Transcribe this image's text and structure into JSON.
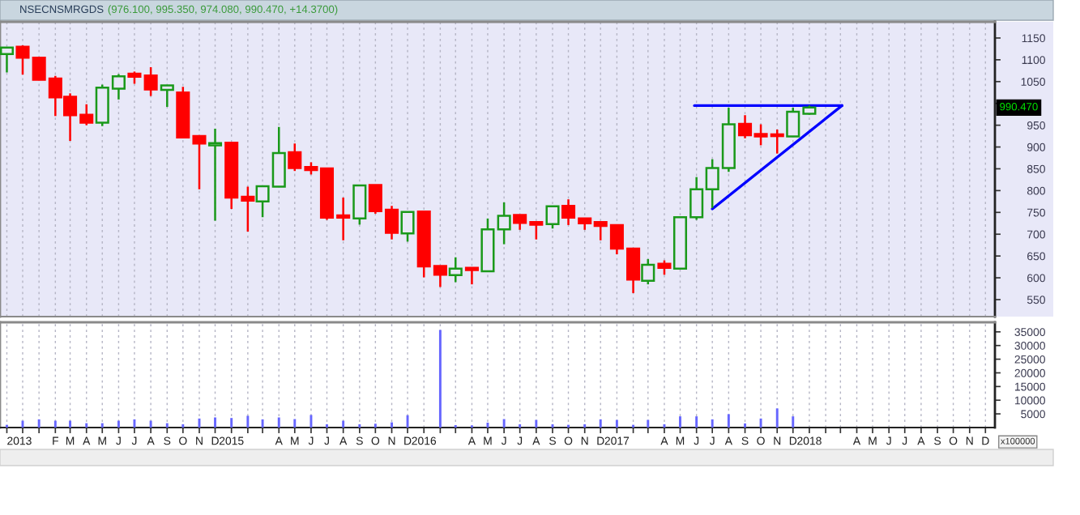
{
  "chart_data": [
    {
      "type": "candlestick",
      "title": "NSECNSMRGDS",
      "subtitle": "(976.100, 995.350, 974.080, 990.470, +14.3700)",
      "x": [
        "2013-11",
        "2013-12",
        "2014-01",
        "2014-02",
        "2014-03",
        "2014-04",
        "2014-05",
        "2014-06",
        "2014-07",
        "2014-08",
        "2014-09",
        "2014-10",
        "2014-11",
        "2014-12",
        "2015-01",
        "2015-02",
        "2015-03",
        "2015-04",
        "2015-05",
        "2015-06",
        "2015-07",
        "2015-08",
        "2015-09",
        "2015-10",
        "2015-11",
        "2015-12",
        "2016-01",
        "2016-02",
        "2016-03",
        "2016-04",
        "2016-05",
        "2016-06",
        "2016-07",
        "2016-08",
        "2016-09",
        "2016-10",
        "2016-11",
        "2016-12",
        "2017-01",
        "2017-02",
        "2017-03",
        "2017-04",
        "2017-05",
        "2017-06",
        "2017-07",
        "2017-08",
        "2017-09",
        "2017-10",
        "2017-11",
        "2017-12",
        "2018-01"
      ],
      "ohlc": [
        [
          1113,
          1129,
          1071,
          1128
        ],
        [
          1130,
          1133,
          1066,
          1105
        ],
        [
          1105,
          1106,
          1053,
          1054
        ],
        [
          1057,
          1063,
          971,
          1014
        ],
        [
          1015,
          1023,
          914,
          973
        ],
        [
          974,
          998,
          950,
          956
        ],
        [
          956,
          1043,
          948,
          1036
        ],
        [
          1034,
          1067,
          1009,
          1062
        ],
        [
          1068,
          1073,
          1045,
          1061
        ],
        [
          1064,
          1083,
          1017,
          1032
        ],
        [
          1031,
          1042,
          992,
          1041
        ],
        [
          1025,
          1038,
          921,
          922
        ],
        [
          925,
          926,
          803,
          908
        ],
        [
          904,
          942,
          731,
          909
        ],
        [
          910,
          910,
          758,
          784
        ],
        [
          786,
          809,
          706,
          777
        ],
        [
          775,
          811,
          739,
          810
        ],
        [
          809,
          946,
          808,
          886
        ],
        [
          888,
          908,
          845,
          852
        ],
        [
          854,
          865,
          837,
          847
        ],
        [
          851,
          852,
          733,
          738
        ],
        [
          743,
          784,
          686,
          738
        ],
        [
          736,
          813,
          722,
          812
        ],
        [
          813,
          813,
          747,
          753
        ],
        [
          756,
          765,
          688,
          703
        ],
        [
          702,
          752,
          683,
          751
        ],
        [
          752,
          752,
          601,
          626
        ],
        [
          627,
          628,
          579,
          607
        ],
        [
          606,
          647,
          590,
          621
        ],
        [
          623,
          623,
          585,
          618
        ],
        [
          615,
          736,
          614,
          711
        ],
        [
          711,
          773,
          677,
          742
        ],
        [
          744,
          745,
          710,
          726
        ],
        [
          728,
          728,
          688,
          722
        ],
        [
          723,
          765,
          713,
          764
        ],
        [
          765,
          780,
          721,
          738
        ],
        [
          736,
          736,
          710,
          725
        ],
        [
          728,
          729,
          686,
          719
        ],
        [
          721,
          721,
          654,
          667
        ],
        [
          667,
          667,
          565,
          596
        ],
        [
          593,
          643,
          585,
          630
        ],
        [
          632,
          640,
          607,
          623
        ],
        [
          621,
          740,
          620,
          739
        ],
        [
          739,
          831,
          733,
          803
        ],
        [
          803,
          872,
          760,
          852
        ],
        [
          852,
          990,
          843,
          952
        ],
        [
          953,
          973,
          920,
          927
        ],
        [
          930,
          952,
          904,
          924
        ],
        [
          929,
          940,
          885,
          925
        ],
        [
          924,
          990,
          923,
          981
        ],
        [
          976.1,
          995.35,
          974.08,
          990.47
        ]
      ],
      "colors": [
        "#1a991a",
        "#ff0000",
        "#ff0000",
        "#ff0000",
        "#ff0000",
        "#ff0000",
        "#1a991a",
        "#1a991a",
        "#ff0000",
        "#ff0000",
        "#1a991a",
        "#ff0000",
        "#ff0000",
        "#1a991a",
        "#ff0000",
        "#ff0000",
        "#1a991a",
        "#1a991a",
        "#ff0000",
        "#ff0000",
        "#ff0000",
        "#ff0000",
        "#1a991a",
        "#ff0000",
        "#ff0000",
        "#1a991a",
        "#ff0000",
        "#ff0000",
        "#1a991a",
        "#ff0000",
        "#1a991a",
        "#1a991a",
        "#ff0000",
        "#ff0000",
        "#1a991a",
        "#ff0000",
        "#ff0000",
        "#ff0000",
        "#ff0000",
        "#ff0000",
        "#1a991a",
        "#ff0000",
        "#1a991a",
        "#1a991a",
        "#1a991a",
        "#1a991a",
        "#ff0000",
        "#ff0000",
        "#ff0000",
        "#1a991a",
        "#1a991a"
      ],
      "series": [
        {
          "type": "line",
          "color": "#0000ff",
          "x": [
            "2017-05-28",
            "2018-03-04"
          ],
          "values": [
            995,
            995
          ]
        },
        {
          "type": "line",
          "color": "#0000ff",
          "x": [
            "2017-07-01",
            "2018-03-04"
          ],
          "values": [
            758,
            995
          ]
        }
      ],
      "annotations": [
        "990.470"
      ],
      "xlim": [
        "2013-10-19",
        "2018-12-19"
      ],
      "ylim": [
        511,
        1187
      ],
      "yticks": [
        550,
        600,
        650,
        700,
        750,
        800,
        850,
        900,
        950,
        {
          "value": 1000,
          "label": null
        },
        1050,
        1100,
        1150
      ],
      "xticks": [
        {
          "value": "2013-11",
          "label": null
        },
        {
          "value": "2013-12",
          "label": null
        },
        {
          "value": "2014-01",
          "label": null
        },
        {
          "value": "2014-02",
          "label": null
        },
        {
          "value": "2014-03",
          "label": null
        },
        {
          "value": "2014-04",
          "label": null
        },
        {
          "value": "2014-05",
          "label": null
        },
        {
          "value": "2014-06",
          "label": null
        },
        {
          "value": "2014-07",
          "label": null
        },
        {
          "value": "2014-08",
          "label": null
        },
        {
          "value": "2014-09",
          "label": null
        },
        {
          "value": "2014-10",
          "label": null
        },
        {
          "value": "2014-11",
          "label": null
        },
        {
          "value": "2014-12",
          "label": null
        },
        {
          "value": "2015-01",
          "label": null
        },
        {
          "value": "2015-02",
          "label": null
        },
        {
          "value": "2015-03",
          "label": null
        },
        {
          "value": "2015-04",
          "label": null
        },
        {
          "value": "2015-05",
          "label": null
        },
        {
          "value": "2015-06",
          "label": null
        },
        {
          "value": "2015-07",
          "label": null
        },
        {
          "value": "2015-08",
          "label": null
        },
        {
          "value": "2015-09",
          "label": null
        },
        {
          "value": "2015-10",
          "label": null
        },
        {
          "value": "2015-11",
          "label": null
        },
        {
          "value": "2015-12",
          "label": null
        },
        {
          "value": "2016-01",
          "label": null
        },
        {
          "value": "2016-02",
          "label": null
        },
        {
          "value": "2016-03",
          "label": null
        },
        {
          "value": "2016-04",
          "label": null
        },
        {
          "value": "2016-05",
          "label": null
        },
        {
          "value": "2016-06",
          "label": null
        },
        {
          "value": "2016-07",
          "label": null
        },
        {
          "value": "2016-08",
          "label": null
        },
        {
          "value": "2016-09",
          "label": null
        },
        {
          "value": "2016-10",
          "label": null
        },
        {
          "value": "2016-11",
          "label": null
        },
        {
          "value": "2016-12",
          "label": null
        },
        {
          "value": "2017-01",
          "label": null
        },
        {
          "value": "2017-02",
          "label": null
        },
        {
          "value": "2017-03",
          "label": null
        },
        {
          "value": "2017-04",
          "label": null
        },
        {
          "value": "2017-05",
          "label": null
        },
        {
          "value": "2017-06",
          "label": null
        },
        {
          "value": "2017-07",
          "label": null
        },
        {
          "value": "2017-08",
          "label": null
        },
        {
          "value": "2017-09",
          "label": null
        },
        {
          "value": "2017-10",
          "label": null
        },
        {
          "value": "2017-11",
          "label": null
        },
        {
          "value": "2017-12",
          "label": null
        },
        {
          "value": "2018-01",
          "label": null
        },
        {
          "value": "2018-02",
          "label": null
        },
        {
          "value": "2018-03",
          "label": null
        },
        {
          "value": "2018-04",
          "label": null
        },
        {
          "value": "2018-05",
          "label": null
        },
        {
          "value": "2018-06",
          "label": null
        },
        {
          "value": "2018-07",
          "label": null
        },
        {
          "value": "2018-08",
          "label": null
        },
        {
          "value": "2018-09",
          "label": null
        },
        {
          "value": "2018-10",
          "label": null
        },
        {
          "value": "2018-11",
          "label": null
        },
        {
          "value": "2018-12",
          "label": null
        }
      ],
      "tick_labels": "y",
      "grid": "x"
    },
    {
      "type": "bar",
      "color": "#6666ff",
      "x": [
        "2013-11",
        "2013-12",
        "2014-01",
        "2014-02",
        "2014-03",
        "2014-04",
        "2014-05",
        "2014-06",
        "2014-07",
        "2014-08",
        "2014-09",
        "2014-10",
        "2014-11",
        "2014-12",
        "2015-01",
        "2015-02",
        "2015-03",
        "2015-04",
        "2015-05",
        "2015-06",
        "2015-07",
        "2015-08",
        "2015-09",
        "2015-10",
        "2015-11",
        "2015-12",
        "2016-01",
        "2016-02",
        "2016-03",
        "2016-04",
        "2016-05",
        "2016-06",
        "2016-07",
        "2016-08",
        "2016-09",
        "2016-10",
        "2016-11",
        "2016-12",
        "2017-01",
        "2017-02",
        "2017-03",
        "2017-04",
        "2017-05",
        "2017-06",
        "2017-07",
        "2017-08",
        "2017-09",
        "2017-10",
        "2017-11",
        "2017-12"
      ],
      "values": [
        1000,
        2500,
        3000,
        2500,
        2500,
        1600,
        1600,
        2500,
        3000,
        2500,
        1600,
        1200,
        3300,
        3700,
        3500,
        4300,
        3000,
        3700,
        3100,
        4600,
        1200,
        2500,
        1200,
        1400,
        1900,
        4500,
        null,
        35700,
        900,
        800,
        1800,
        3100,
        1200,
        2800,
        1200,
        1000,
        1200,
        3000,
        2800,
        1000,
        2800,
        1200,
        4100,
        4100,
        3000,
        4900,
        1500,
        3300,
        7000,
        4100
      ],
      "annotations": [
        "x100000"
      ],
      "xlim": [
        "2013-10-19",
        "2018-12-19"
      ],
      "ylim": [
        0,
        38500
      ],
      "yticks": [
        5000,
        10000,
        15000,
        20000,
        25000,
        30000,
        35000
      ],
      "xticks": [
        {
          "value": "2013-11",
          "label": "2013"
        },
        {
          "value": "2013-12",
          "label": null
        },
        {
          "value": "2014-01",
          "label": null
        },
        {
          "value": "2014-02",
          "label": "F"
        },
        {
          "value": "2014-03",
          "label": "M"
        },
        {
          "value": "2014-04",
          "label": "A"
        },
        {
          "value": "2014-05",
          "label": "M"
        },
        {
          "value": "2014-06",
          "label": "J"
        },
        {
          "value": "2014-07",
          "label": "J"
        },
        {
          "value": "2014-08",
          "label": "A"
        },
        {
          "value": "2014-09",
          "label": "S"
        },
        {
          "value": "2014-10",
          "label": "O"
        },
        {
          "value": "2014-11",
          "label": "N"
        },
        {
          "value": "2014-12",
          "label": "D"
        },
        {
          "value": "2015-01",
          "label": "2015"
        },
        {
          "value": "2015-02",
          "label": null
        },
        {
          "value": "2015-03",
          "label": null
        },
        {
          "value": "2015-04",
          "label": "A"
        },
        {
          "value": "2015-05",
          "label": "M"
        },
        {
          "value": "2015-06",
          "label": "J"
        },
        {
          "value": "2015-07",
          "label": "J"
        },
        {
          "value": "2015-08",
          "label": "A"
        },
        {
          "value": "2015-09",
          "label": "S"
        },
        {
          "value": "2015-10",
          "label": "O"
        },
        {
          "value": "2015-11",
          "label": "N"
        },
        {
          "value": "2015-12",
          "label": "D"
        },
        {
          "value": "2016-01",
          "label": "2016"
        },
        {
          "value": "2016-02",
          "label": null
        },
        {
          "value": "2016-03",
          "label": null
        },
        {
          "value": "2016-04",
          "label": "A"
        },
        {
          "value": "2016-05",
          "label": "M"
        },
        {
          "value": "2016-06",
          "label": "J"
        },
        {
          "value": "2016-07",
          "label": "J"
        },
        {
          "value": "2016-08",
          "label": "A"
        },
        {
          "value": "2016-09",
          "label": "S"
        },
        {
          "value": "2016-10",
          "label": "O"
        },
        {
          "value": "2016-11",
          "label": "N"
        },
        {
          "value": "2016-12",
          "label": "D"
        },
        {
          "value": "2017-01",
          "label": "2017"
        },
        {
          "value": "2017-02",
          "label": null
        },
        {
          "value": "2017-03",
          "label": null
        },
        {
          "value": "2017-04",
          "label": "A"
        },
        {
          "value": "2017-05",
          "label": "M"
        },
        {
          "value": "2017-06",
          "label": "J"
        },
        {
          "value": "2017-07",
          "label": "J"
        },
        {
          "value": "2017-08",
          "label": "A"
        },
        {
          "value": "2017-09",
          "label": "S"
        },
        {
          "value": "2017-10",
          "label": "O"
        },
        {
          "value": "2017-11",
          "label": "N"
        },
        {
          "value": "2017-12",
          "label": "D"
        },
        {
          "value": "2018-01",
          "label": "2018"
        },
        {
          "value": "2018-02",
          "label": null
        },
        {
          "value": "2018-03",
          "label": null
        },
        {
          "value": "2018-04",
          "label": "A"
        },
        {
          "value": "2018-05",
          "label": "M"
        },
        {
          "value": "2018-06",
          "label": "J"
        },
        {
          "value": "2018-07",
          "label": "J"
        },
        {
          "value": "2018-08",
          "label": "A"
        },
        {
          "value": "2018-09",
          "label": "S"
        },
        {
          "value": "2018-10",
          "label": "O"
        },
        {
          "value": "2018-11",
          "label": "N"
        },
        {
          "value": "2018-12",
          "label": "D"
        }
      ],
      "grid": "x"
    }
  ]
}
